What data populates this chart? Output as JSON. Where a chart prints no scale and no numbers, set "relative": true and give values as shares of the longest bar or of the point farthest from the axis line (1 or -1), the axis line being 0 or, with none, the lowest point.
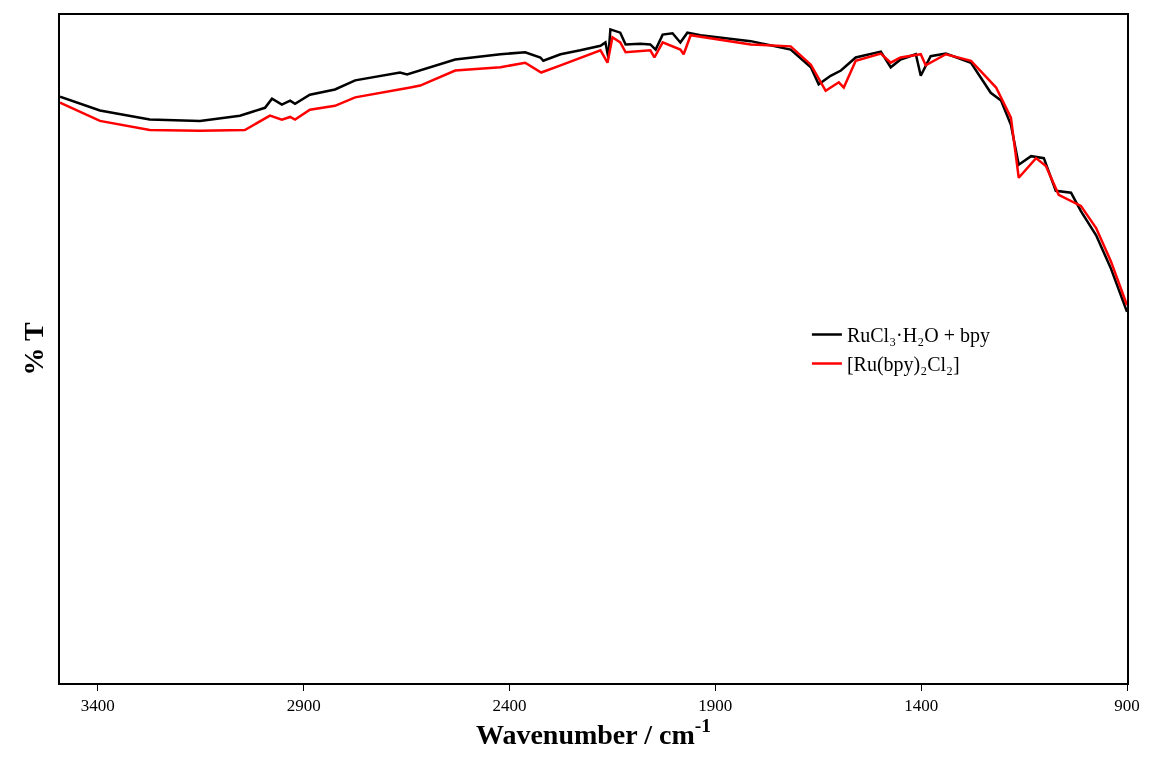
{
  "chart_data": {
    "type": "line",
    "xlabel": "Wavenumber / cm$^{-1}$",
    "ylabel": "% T",
    "relative": true,
    "grid": false,
    "legend": "right",
    "xlim": [
      3492,
      900
    ],
    "xticks": [
      3400,
      2900,
      2400,
      1900,
      1400,
      900
    ],
    "series": [
      {
        "name": "RuCl₃·H₂O + bpy",
        "color": "#000000",
        "x": [
          3492,
          3395,
          3274,
          3152,
          3055,
          2994,
          2977,
          2953,
          2933,
          2921,
          2885,
          2824,
          2775,
          2666,
          2649,
          2532,
          2422,
          2362,
          2325,
          2318,
          2276,
          2228,
          2179,
          2167,
          2160,
          2155,
          2131,
          2118,
          2082,
          2058,
          2045,
          2028,
          2004,
          1985,
          1968,
          1936,
          1814,
          1717,
          1668,
          1649,
          1620,
          1595,
          1559,
          1498,
          1474,
          1450,
          1413,
          1401,
          1377,
          1340,
          1279,
          1231,
          1206,
          1182,
          1163,
          1133,
          1102,
          1073,
          1036,
          1012,
          975,
          939,
          900
        ],
        "values": [
          0.897,
          0.876,
          0.862,
          0.86,
          0.868,
          0.88,
          0.894,
          0.885,
          0.891,
          0.886,
          0.9,
          0.908,
          0.922,
          0.934,
          0.931,
          0.954,
          0.962,
          0.965,
          0.957,
          0.952,
          0.962,
          0.968,
          0.975,
          0.98,
          0.957,
          1.0,
          0.995,
          0.977,
          0.978,
          0.977,
          0.969,
          0.992,
          0.994,
          0.98,
          0.995,
          0.991,
          0.982,
          0.969,
          0.942,
          0.916,
          0.929,
          0.937,
          0.957,
          0.966,
          0.942,
          0.954,
          0.962,
          0.929,
          0.959,
          0.963,
          0.949,
          0.903,
          0.891,
          0.854,
          0.793,
          0.806,
          0.803,
          0.753,
          0.75,
          0.722,
          0.685,
          0.634,
          0.568
        ]
      },
      {
        "name": "[Ru(bpy)₂Cl₂]",
        "color": "#ff0000",
        "x": [
          3492,
          3395,
          3274,
          3152,
          3043,
          2982,
          2953,
          2933,
          2921,
          2885,
          2824,
          2775,
          2641,
          2617,
          2532,
          2422,
          2362,
          2323,
          2276,
          2179,
          2162,
          2150,
          2131,
          2118,
          2058,
          2048,
          2028,
          1985,
          1977,
          1960,
          1814,
          1717,
          1668,
          1632,
          1600,
          1588,
          1559,
          1498,
          1474,
          1450,
          1401,
          1389,
          1340,
          1279,
          1218,
          1182,
          1163,
          1121,
          1097,
          1066,
          1012,
          975,
          939,
          900
        ],
        "values": [
          0.888,
          0.86,
          0.846,
          0.845,
          0.846,
          0.868,
          0.862,
          0.866,
          0.862,
          0.877,
          0.883,
          0.896,
          0.911,
          0.914,
          0.937,
          0.942,
          0.949,
          0.934,
          0.945,
          0.968,
          0.949,
          0.988,
          0.98,
          0.965,
          0.968,
          0.957,
          0.98,
          0.969,
          0.962,
          0.991,
          0.977,
          0.974,
          0.946,
          0.906,
          0.919,
          0.911,
          0.952,
          0.963,
          0.949,
          0.957,
          0.962,
          0.945,
          0.962,
          0.952,
          0.911,
          0.865,
          0.773,
          0.803,
          0.791,
          0.747,
          0.73,
          0.696,
          0.645,
          0.578
        ]
      }
    ]
  }
}
